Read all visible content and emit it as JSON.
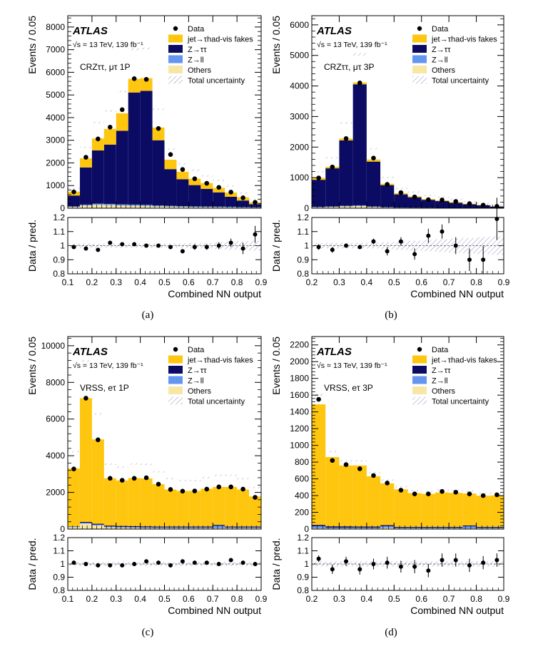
{
  "figure": {
    "captions": [
      "(a)",
      "(b)",
      "(c)",
      "(d)"
    ],
    "colors": {
      "fakes": "#fec60f",
      "ztautau": "#0b0b64",
      "zll": "#6496f0",
      "others": "#f8e6a5",
      "uncert": "#2b2b8c",
      "data": "#000000"
    }
  },
  "chart_data": [
    {
      "id": "a",
      "type": "bar",
      "stacked": true,
      "atlas_label": "ATLAS",
      "energy_label": "√s = 13 TeV, 139 fb⁻¹",
      "region_label": "CRZττ, μτ 1P",
      "ylabel": "Events / 0.05",
      "xlabel": "Combined NN output",
      "ratio_ylabel": "Data / pred.",
      "legend": [
        "Data",
        "jet→τhad-vis fakes",
        "Z→ττ",
        "Z→ll",
        "Others",
        "Total uncertainty"
      ],
      "legend_position": "top-right",
      "xlim": [
        0.1,
        0.9
      ],
      "ylim": [
        0,
        8500
      ],
      "ratio_ylim": [
        0.8,
        1.2
      ],
      "xticks": [
        "0.1",
        "0.2",
        "0.3",
        "0.4",
        "0.5",
        "0.6",
        "0.7",
        "0.8",
        "0.9"
      ],
      "yticks": [
        "0",
        "1000",
        "2000",
        "3000",
        "4000",
        "5000",
        "6000",
        "7000",
        "8000"
      ],
      "ratio_yticks": [
        "0.8",
        "0.9",
        "1",
        "1.1",
        "1.2"
      ],
      "bin_edges": [
        0.1,
        0.15,
        0.2,
        0.25,
        0.3,
        0.35,
        0.4,
        0.45,
        0.5,
        0.55,
        0.6,
        0.65,
        0.7,
        0.75,
        0.8,
        0.85,
        0.9
      ],
      "series": [
        {
          "name": "Others",
          "values": [
            60,
            120,
            150,
            140,
            120,
            110,
            100,
            80,
            70,
            60,
            50,
            45,
            40,
            35,
            30,
            25
          ]
        },
        {
          "name": "Z→ll",
          "values": [
            20,
            40,
            50,
            50,
            50,
            50,
            50,
            40,
            35,
            30,
            30,
            30,
            30,
            30,
            20,
            15
          ]
        },
        {
          "name": "Z→ττ",
          "values": [
            480,
            1640,
            2350,
            2620,
            3250,
            4950,
            5030,
            2880,
            1620,
            1190,
            940,
            780,
            630,
            440,
            290,
            140
          ]
        },
        {
          "name": "jet→τhad-vis fakes",
          "values": [
            170,
            400,
            530,
            690,
            770,
            600,
            560,
            560,
            415,
            330,
            280,
            255,
            200,
            185,
            140,
            80
          ]
        }
      ],
      "data": [
        720,
        2250,
        3060,
        3580,
        4350,
        5720,
        5690,
        3520,
        2370,
        1710,
        1300,
        1100,
        920,
        710,
        460,
        260
      ],
      "ratio": [
        0.99,
        0.98,
        0.97,
        1.02,
        1.01,
        1.01,
        1.0,
        1.0,
        0.99,
        0.96,
        0.99,
        0.99,
        1.0,
        1.02,
        0.98,
        1.08
      ],
      "ratio_err": [
        0.01,
        0.01,
        0.01,
        0.01,
        0.01,
        0.01,
        0.01,
        0.01,
        0.01,
        0.015,
        0.02,
        0.02,
        0.025,
        0.03,
        0.04,
        0.06
      ],
      "uncert": [
        0.015,
        0.015,
        0.015,
        0.015,
        0.015,
        0.015,
        0.015,
        0.015,
        0.015,
        0.015,
        0.02,
        0.02,
        0.025,
        0.03,
        0.03,
        0.035
      ]
    },
    {
      "id": "b",
      "type": "bar",
      "stacked": true,
      "atlas_label": "ATLAS",
      "energy_label": "√s = 13 TeV, 139 fb⁻¹",
      "region_label": "CRZττ, μτ 3P",
      "ylabel": "Events / 0.05",
      "xlabel": "Combined NN output",
      "ratio_ylabel": "Data / pred.",
      "legend": [
        "Data",
        "jet→τhad-vis fakes",
        "Z→ττ",
        "Z→ll",
        "Others",
        "Total uncertainty"
      ],
      "legend_position": "top-right",
      "xlim": [
        0.2,
        0.9
      ],
      "ylim": [
        0,
        6300
      ],
      "ratio_ylim": [
        0.8,
        1.2
      ],
      "xticks": [
        "0.2",
        "0.3",
        "0.4",
        "0.5",
        "0.6",
        "0.7",
        "0.8",
        "0.9"
      ],
      "yticks": [
        "0",
        "1000",
        "2000",
        "3000",
        "4000",
        "5000",
        "6000"
      ],
      "ratio_yticks": [
        "0.8",
        "0.9",
        "1",
        "1.1",
        "1.2"
      ],
      "bin_edges": [
        0.2,
        0.25,
        0.3,
        0.35,
        0.4,
        0.45,
        0.5,
        0.55,
        0.6,
        0.65,
        0.7,
        0.75,
        0.8,
        0.85,
        0.9
      ],
      "series": [
        {
          "name": "Others",
          "values": [
            30,
            40,
            60,
            70,
            40,
            25,
            15,
            12,
            10,
            8,
            6,
            5,
            4,
            3
          ]
        },
        {
          "name": "Z→ll",
          "values": [
            10,
            15,
            20,
            25,
            15,
            10,
            8,
            6,
            5,
            4,
            3,
            3,
            2,
            2
          ]
        },
        {
          "name": "Z→ττ",
          "values": [
            890,
            1250,
            2140,
            3960,
            1470,
            720,
            430,
            340,
            260,
            220,
            170,
            120,
            90,
            50
          ]
        },
        {
          "name": "jet→τhad-vis fakes",
          "values": [
            60,
            50,
            60,
            60,
            70,
            45,
            37,
            32,
            25,
            23,
            21,
            17,
            14,
            10
          ]
        }
      ],
      "data": [
        990,
        1350,
        2280,
        4100,
        1640,
        780,
        510,
        370,
        280,
        270,
        220,
        150,
        100,
        60
      ],
      "ratio": [
        0.99,
        0.97,
        1.0,
        0.99,
        1.03,
        0.96,
        1.03,
        0.94,
        1.07,
        1.1,
        1.0,
        0.9,
        0.9,
        1.19
      ],
      "ratio_err": [
        0.02,
        0.02,
        0.01,
        0.01,
        0.02,
        0.03,
        0.03,
        0.04,
        0.05,
        0.05,
        0.06,
        0.08,
        0.1,
        0.15
      ],
      "uncert": [
        0.02,
        0.02,
        0.02,
        0.02,
        0.02,
        0.025,
        0.03,
        0.035,
        0.04,
        0.045,
        0.05,
        0.055,
        0.06,
        0.065
      ]
    },
    {
      "id": "c",
      "type": "bar",
      "stacked": true,
      "atlas_label": "ATLAS",
      "energy_label": "√s = 13 TeV, 139 fb⁻¹",
      "region_label": "VRSS, eτ 1P",
      "ylabel": "Events / 0.05",
      "xlabel": "Combined NN output",
      "ratio_ylabel": "Data / pred.",
      "legend": [
        "Data",
        "jet→τhad-vis fakes",
        "Z→ττ",
        "Z→ll",
        "Others",
        "Total uncertainty"
      ],
      "legend_position": "top-right",
      "xlim": [
        0.1,
        0.9
      ],
      "ylim": [
        0,
        10500
      ],
      "ratio_ylim": [
        0.8,
        1.2
      ],
      "xticks": [
        "0.1",
        "0.2",
        "0.3",
        "0.4",
        "0.5",
        "0.6",
        "0.7",
        "0.8",
        "0.9"
      ],
      "yticks": [
        "0",
        "2000",
        "4000",
        "6000",
        "8000",
        "10000"
      ],
      "ratio_yticks": [
        "0.8",
        "0.9",
        "1",
        "1.1",
        "1.2"
      ],
      "bin_edges": [
        0.1,
        0.15,
        0.2,
        0.25,
        0.3,
        0.35,
        0.4,
        0.45,
        0.5,
        0.55,
        0.6,
        0.65,
        0.7,
        0.75,
        0.8,
        0.85,
        0.9
      ],
      "series": [
        {
          "name": "Others",
          "values": [
            100,
            300,
            200,
            100,
            80,
            70,
            60,
            50,
            50,
            50,
            50,
            50,
            50,
            50,
            50,
            50
          ]
        },
        {
          "name": "Z→ll",
          "values": [
            30,
            40,
            40,
            40,
            40,
            40,
            40,
            40,
            40,
            40,
            40,
            40,
            130,
            40,
            40,
            40
          ]
        },
        {
          "name": "Z→ττ",
          "values": [
            20,
            50,
            50,
            50,
            50,
            50,
            50,
            50,
            50,
            50,
            50,
            50,
            50,
            50,
            50,
            50
          ]
        },
        {
          "name": "jet→τhad-vis fakes",
          "values": [
            3150,
            6750,
            4600,
            2580,
            2480,
            2620,
            2610,
            2310,
            2020,
            1940,
            1940,
            2060,
            2070,
            2160,
            2020,
            1640
          ]
        }
      ],
      "data": [
        3280,
        7140,
        4870,
        2770,
        2660,
        2770,
        2800,
        2450,
        2160,
        2070,
        2080,
        2180,
        2300,
        2300,
        2180,
        1730
      ],
      "ratio": [
        1.01,
        1.0,
        0.99,
        0.99,
        0.99,
        1.0,
        1.02,
        1.01,
        0.99,
        1.02,
        1.01,
        1.01,
        1.0,
        1.03,
        1.01,
        1.0
      ],
      "ratio_err": [
        0.01,
        0.008,
        0.008,
        0.01,
        0.01,
        0.01,
        0.01,
        0.01,
        0.01,
        0.01,
        0.01,
        0.01,
        0.01,
        0.01,
        0.01,
        0.012
      ],
      "uncert": [
        0.015,
        0.015,
        0.015,
        0.015,
        0.015,
        0.015,
        0.015,
        0.015,
        0.015,
        0.015,
        0.015,
        0.015,
        0.015,
        0.015,
        0.015,
        0.015
      ]
    },
    {
      "id": "d",
      "type": "bar",
      "stacked": true,
      "atlas_label": "ATLAS",
      "energy_label": "√s = 13 TeV, 139 fb⁻¹",
      "region_label": "VRSS, eτ 3P",
      "ylabel": "Events / 0.05",
      "xlabel": "Combined NN output",
      "ratio_ylabel": "Data / pred.",
      "legend": [
        "Data",
        "jet→τhad-vis fakes",
        "Z→ττ",
        "Z→ll",
        "Others",
        "Total uncertainty"
      ],
      "legend_position": "top-right",
      "xlim": [
        0.2,
        0.9
      ],
      "ylim": [
        0,
        2300
      ],
      "ratio_ylim": [
        0.8,
        1.2
      ],
      "xticks": [
        "0.2",
        "0.3",
        "0.4",
        "0.5",
        "0.6",
        "0.7",
        "0.8",
        "0.9"
      ],
      "yticks": [
        "0",
        "200",
        "400",
        "600",
        "800",
        "1000",
        "1200",
        "1400",
        "1600",
        "1800",
        "2000",
        "2200"
      ],
      "ratio_yticks": [
        "0.8",
        "0.9",
        "1",
        "1.1",
        "1.2"
      ],
      "bin_edges": [
        0.2,
        0.25,
        0.3,
        0.35,
        0.4,
        0.45,
        0.5,
        0.55,
        0.6,
        0.65,
        0.7,
        0.75,
        0.8,
        0.85,
        0.9
      ],
      "series": [
        {
          "name": "Others",
          "values": [
            10,
            8,
            8,
            8,
            8,
            15,
            8,
            8,
            8,
            8,
            8,
            8,
            8,
            8
          ]
        },
        {
          "name": "Z→ll",
          "values": [
            25,
            10,
            10,
            10,
            10,
            20,
            8,
            8,
            8,
            8,
            8,
            25,
            8,
            8
          ]
        },
        {
          "name": "Z→ττ",
          "values": [
            15,
            15,
            15,
            12,
            12,
            12,
            10,
            10,
            10,
            10,
            10,
            10,
            10,
            10
          ]
        },
        {
          "name": "jet→τhad-vis fakes",
          "values": [
            1440,
            827,
            727,
            730,
            600,
            500,
            449,
            404,
            395,
            412,
            407,
            382,
            373,
            376
          ]
        }
      ],
      "data": [
        1550,
        820,
        770,
        720,
        640,
        550,
        465,
        420,
        420,
        450,
        440,
        420,
        400,
        410
      ],
      "ratio": [
        1.04,
        0.96,
        1.02,
        0.96,
        1.0,
        1.01,
        0.98,
        0.98,
        0.95,
        1.03,
        1.03,
        0.99,
        1.01,
        1.03
      ],
      "ratio_err": [
        0.025,
        0.035,
        0.035,
        0.04,
        0.04,
        0.045,
        0.045,
        0.05,
        0.05,
        0.05,
        0.05,
        0.05,
        0.05,
        0.05
      ],
      "uncert": [
        0.02,
        0.02,
        0.02,
        0.02,
        0.02,
        0.02,
        0.02,
        0.02,
        0.02,
        0.02,
        0.02,
        0.02,
        0.02,
        0.02
      ]
    }
  ]
}
